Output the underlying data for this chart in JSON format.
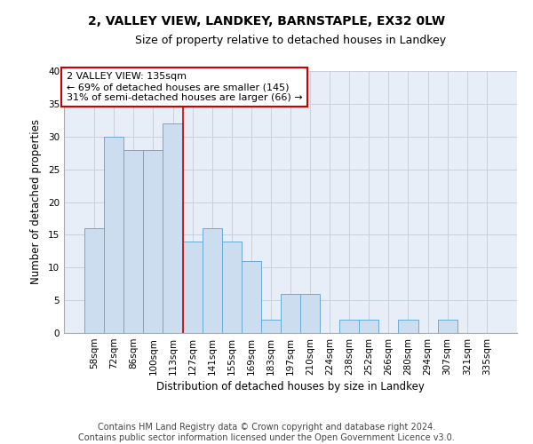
{
  "title_line1": "2, VALLEY VIEW, LANDKEY, BARNSTAPLE, EX32 0LW",
  "title_line2": "Size of property relative to detached houses in Landkey",
  "xlabel": "Distribution of detached houses by size in Landkey",
  "ylabel": "Number of detached properties",
  "categories": [
    "58sqm",
    "72sqm",
    "86sqm",
    "100sqm",
    "113sqm",
    "127sqm",
    "141sqm",
    "155sqm",
    "169sqm",
    "183sqm",
    "197sqm",
    "210sqm",
    "224sqm",
    "238sqm",
    "252sqm",
    "266sqm",
    "280sqm",
    "294sqm",
    "307sqm",
    "321sqm",
    "335sqm"
  ],
  "values": [
    16,
    30,
    28,
    28,
    32,
    14,
    16,
    14,
    11,
    2,
    6,
    6,
    0,
    2,
    2,
    0,
    2,
    0,
    2,
    0,
    0
  ],
  "bar_color": "#ccddf0",
  "bar_edge_color": "#6aaad4",
  "annotation_text": "2 VALLEY VIEW: 135sqm\n← 69% of detached houses are smaller (145)\n31% of semi-detached houses are larger (66) →",
  "annotation_box_color": "white",
  "annotation_box_edge_color": "#cc0000",
  "ylim": [
    0,
    40
  ],
  "yticks": [
    0,
    5,
    10,
    15,
    20,
    25,
    30,
    35,
    40
  ],
  "grid_color": "#c8d0dc",
  "background_color": "#e8eef8",
  "footer_line1": "Contains HM Land Registry data © Crown copyright and database right 2024.",
  "footer_line2": "Contains public sector information licensed under the Open Government Licence v3.0.",
  "red_line_color": "#cc0000",
  "title_fontsize": 10,
  "subtitle_fontsize": 9,
  "axis_label_fontsize": 8.5,
  "tick_fontsize": 7.5,
  "annotation_fontsize": 8,
  "footer_fontsize": 7
}
